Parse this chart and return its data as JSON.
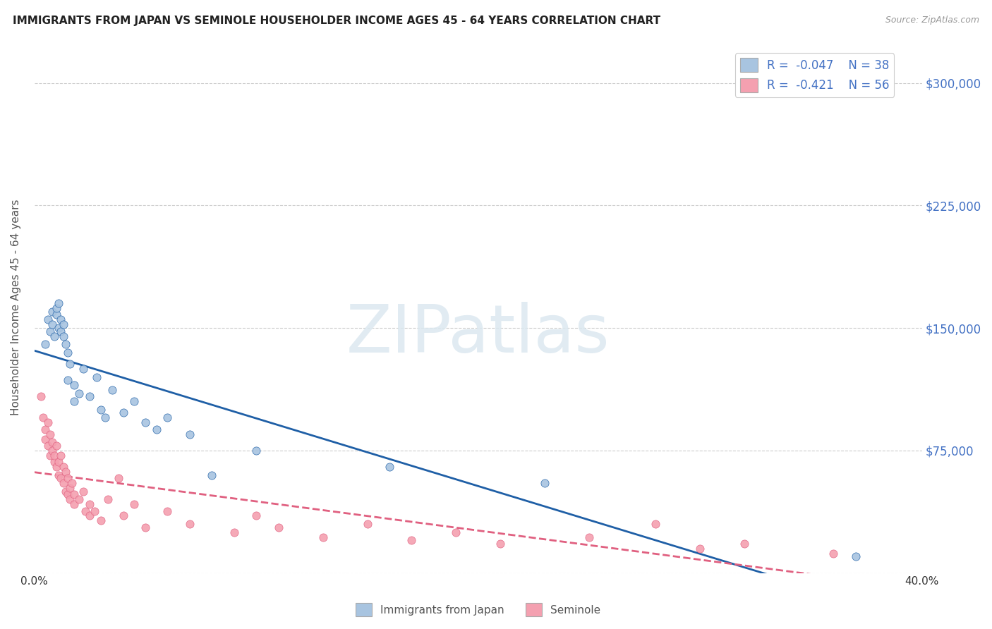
{
  "title": "IMMIGRANTS FROM JAPAN VS SEMINOLE HOUSEHOLDER INCOME AGES 45 - 64 YEARS CORRELATION CHART",
  "source": "Source: ZipAtlas.com",
  "ylabel": "Householder Income Ages 45 - 64 years",
  "xmin": 0.0,
  "xmax": 0.4,
  "ymin": 0,
  "ymax": 325000,
  "yticks": [
    0,
    75000,
    150000,
    225000,
    300000
  ],
  "ytick_labels": [
    "",
    "$75,000",
    "$150,000",
    "$225,000",
    "$300,000"
  ],
  "xticks": [
    0.0,
    0.05,
    0.1,
    0.15,
    0.2,
    0.25,
    0.3,
    0.35,
    0.4
  ],
  "xtick_labels": [
    "0.0%",
    "",
    "",
    "",
    "",
    "",
    "",
    "",
    "40.0%"
  ],
  "blue_R": -0.047,
  "blue_N": 38,
  "pink_R": -0.421,
  "pink_N": 56,
  "blue_color": "#a8c4e0",
  "blue_line_color": "#1f5fa6",
  "pink_color": "#f4a0b0",
  "pink_line_color": "#e06080",
  "legend_label_blue": "Immigrants from Japan",
  "legend_label_pink": "Seminole",
  "blue_scatter_x": [
    0.005,
    0.006,
    0.007,
    0.008,
    0.008,
    0.009,
    0.01,
    0.01,
    0.011,
    0.011,
    0.012,
    0.012,
    0.013,
    0.013,
    0.014,
    0.015,
    0.015,
    0.016,
    0.018,
    0.018,
    0.02,
    0.022,
    0.025,
    0.028,
    0.03,
    0.032,
    0.035,
    0.04,
    0.045,
    0.05,
    0.055,
    0.06,
    0.07,
    0.08,
    0.1,
    0.16,
    0.23,
    0.37
  ],
  "blue_scatter_y": [
    140000,
    155000,
    148000,
    152000,
    160000,
    145000,
    158000,
    162000,
    150000,
    165000,
    148000,
    155000,
    145000,
    152000,
    140000,
    135000,
    118000,
    128000,
    105000,
    115000,
    110000,
    125000,
    108000,
    120000,
    100000,
    95000,
    112000,
    98000,
    105000,
    92000,
    88000,
    95000,
    85000,
    60000,
    75000,
    65000,
    55000,
    10000
  ],
  "pink_scatter_x": [
    0.003,
    0.004,
    0.005,
    0.005,
    0.006,
    0.006,
    0.007,
    0.007,
    0.008,
    0.008,
    0.009,
    0.009,
    0.01,
    0.01,
    0.011,
    0.011,
    0.012,
    0.012,
    0.013,
    0.013,
    0.014,
    0.014,
    0.015,
    0.015,
    0.016,
    0.016,
    0.017,
    0.018,
    0.018,
    0.02,
    0.022,
    0.023,
    0.025,
    0.025,
    0.027,
    0.03,
    0.033,
    0.038,
    0.04,
    0.045,
    0.05,
    0.06,
    0.07,
    0.09,
    0.1,
    0.11,
    0.13,
    0.15,
    0.17,
    0.19,
    0.21,
    0.25,
    0.28,
    0.3,
    0.32,
    0.36
  ],
  "pink_scatter_y": [
    108000,
    95000,
    82000,
    88000,
    92000,
    78000,
    85000,
    72000,
    80000,
    75000,
    68000,
    72000,
    65000,
    78000,
    68000,
    60000,
    72000,
    58000,
    65000,
    55000,
    62000,
    50000,
    58000,
    48000,
    52000,
    45000,
    55000,
    48000,
    42000,
    45000,
    50000,
    38000,
    42000,
    35000,
    38000,
    32000,
    45000,
    58000,
    35000,
    42000,
    28000,
    38000,
    30000,
    25000,
    35000,
    28000,
    22000,
    30000,
    20000,
    25000,
    18000,
    22000,
    30000,
    15000,
    18000,
    12000
  ]
}
